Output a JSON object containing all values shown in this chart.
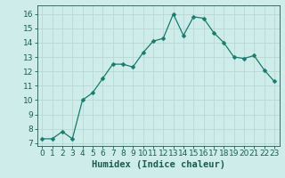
{
  "x": [
    0,
    1,
    2,
    3,
    4,
    5,
    6,
    7,
    8,
    9,
    10,
    11,
    12,
    13,
    14,
    15,
    16,
    17,
    18,
    19,
    20,
    21,
    22,
    23
  ],
  "y": [
    7.3,
    7.3,
    7.8,
    7.3,
    10.0,
    10.5,
    11.5,
    12.5,
    12.5,
    12.3,
    13.3,
    14.1,
    14.3,
    16.0,
    14.5,
    15.8,
    15.7,
    14.7,
    14.0,
    13.0,
    12.9,
    13.1,
    12.1,
    11.3
  ],
  "line_color": "#1a7a6e",
  "marker": "D",
  "marker_size": 2.5,
  "bg_color": "#ceecea",
  "grid_color": "#b8d8d4",
  "xlabel": "Humidex (Indice chaleur)",
  "xlim": [
    -0.5,
    23.5
  ],
  "ylim": [
    6.8,
    16.6
  ],
  "yticks": [
    7,
    8,
    9,
    10,
    11,
    12,
    13,
    14,
    15,
    16
  ],
  "xticks": [
    0,
    1,
    2,
    3,
    4,
    5,
    6,
    7,
    8,
    9,
    10,
    11,
    12,
    13,
    14,
    15,
    16,
    17,
    18,
    19,
    20,
    21,
    22,
    23
  ],
  "tick_label_size": 6.5,
  "xlabel_size": 7.5,
  "text_color": "#1a5c52"
}
